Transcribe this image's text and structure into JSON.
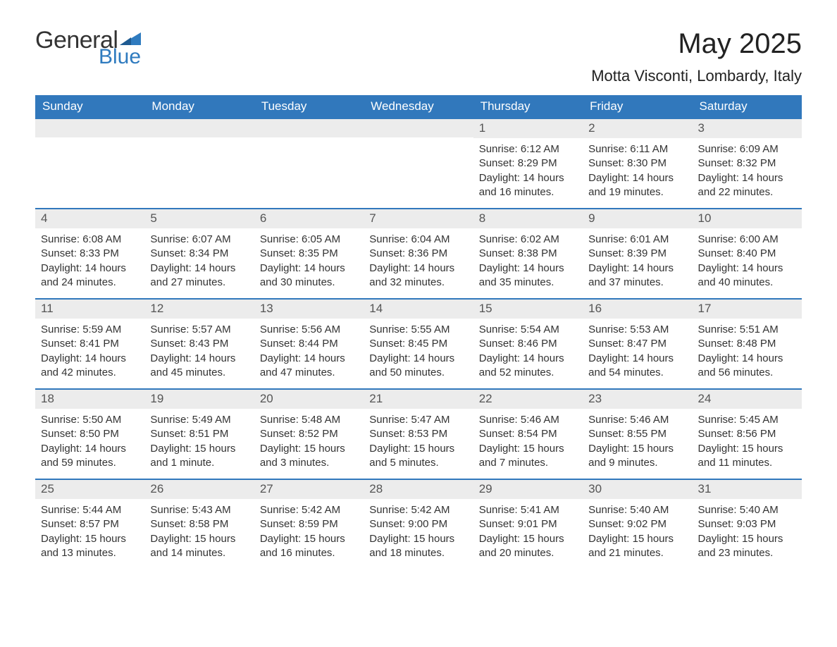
{
  "logo": {
    "line1": "General",
    "line2": "Blue",
    "tri_color": "#2f7bbf"
  },
  "title": "May 2025",
  "subtitle": "Motta Visconti, Lombardy, Italy",
  "colors": {
    "header_bg": "#3178bc",
    "header_text": "#ffffff",
    "daynum_bg": "#ececec",
    "daynum_text": "#555555",
    "body_text": "#333333",
    "rule": "#3178bc"
  },
  "day_headers": [
    "Sunday",
    "Monday",
    "Tuesday",
    "Wednesday",
    "Thursday",
    "Friday",
    "Saturday"
  ],
  "weeks": [
    [
      {
        "n": "",
        "sunrise": "",
        "sunset": "",
        "daylight": ""
      },
      {
        "n": "",
        "sunrise": "",
        "sunset": "",
        "daylight": ""
      },
      {
        "n": "",
        "sunrise": "",
        "sunset": "",
        "daylight": ""
      },
      {
        "n": "",
        "sunrise": "",
        "sunset": "",
        "daylight": ""
      },
      {
        "n": "1",
        "sunrise": "Sunrise: 6:12 AM",
        "sunset": "Sunset: 8:29 PM",
        "daylight": "Daylight: 14 hours and 16 minutes."
      },
      {
        "n": "2",
        "sunrise": "Sunrise: 6:11 AM",
        "sunset": "Sunset: 8:30 PM",
        "daylight": "Daylight: 14 hours and 19 minutes."
      },
      {
        "n": "3",
        "sunrise": "Sunrise: 6:09 AM",
        "sunset": "Sunset: 8:32 PM",
        "daylight": "Daylight: 14 hours and 22 minutes."
      }
    ],
    [
      {
        "n": "4",
        "sunrise": "Sunrise: 6:08 AM",
        "sunset": "Sunset: 8:33 PM",
        "daylight": "Daylight: 14 hours and 24 minutes."
      },
      {
        "n": "5",
        "sunrise": "Sunrise: 6:07 AM",
        "sunset": "Sunset: 8:34 PM",
        "daylight": "Daylight: 14 hours and 27 minutes."
      },
      {
        "n": "6",
        "sunrise": "Sunrise: 6:05 AM",
        "sunset": "Sunset: 8:35 PM",
        "daylight": "Daylight: 14 hours and 30 minutes."
      },
      {
        "n": "7",
        "sunrise": "Sunrise: 6:04 AM",
        "sunset": "Sunset: 8:36 PM",
        "daylight": "Daylight: 14 hours and 32 minutes."
      },
      {
        "n": "8",
        "sunrise": "Sunrise: 6:02 AM",
        "sunset": "Sunset: 8:38 PM",
        "daylight": "Daylight: 14 hours and 35 minutes."
      },
      {
        "n": "9",
        "sunrise": "Sunrise: 6:01 AM",
        "sunset": "Sunset: 8:39 PM",
        "daylight": "Daylight: 14 hours and 37 minutes."
      },
      {
        "n": "10",
        "sunrise": "Sunrise: 6:00 AM",
        "sunset": "Sunset: 8:40 PM",
        "daylight": "Daylight: 14 hours and 40 minutes."
      }
    ],
    [
      {
        "n": "11",
        "sunrise": "Sunrise: 5:59 AM",
        "sunset": "Sunset: 8:41 PM",
        "daylight": "Daylight: 14 hours and 42 minutes."
      },
      {
        "n": "12",
        "sunrise": "Sunrise: 5:57 AM",
        "sunset": "Sunset: 8:43 PM",
        "daylight": "Daylight: 14 hours and 45 minutes."
      },
      {
        "n": "13",
        "sunrise": "Sunrise: 5:56 AM",
        "sunset": "Sunset: 8:44 PM",
        "daylight": "Daylight: 14 hours and 47 minutes."
      },
      {
        "n": "14",
        "sunrise": "Sunrise: 5:55 AM",
        "sunset": "Sunset: 8:45 PM",
        "daylight": "Daylight: 14 hours and 50 minutes."
      },
      {
        "n": "15",
        "sunrise": "Sunrise: 5:54 AM",
        "sunset": "Sunset: 8:46 PM",
        "daylight": "Daylight: 14 hours and 52 minutes."
      },
      {
        "n": "16",
        "sunrise": "Sunrise: 5:53 AM",
        "sunset": "Sunset: 8:47 PM",
        "daylight": "Daylight: 14 hours and 54 minutes."
      },
      {
        "n": "17",
        "sunrise": "Sunrise: 5:51 AM",
        "sunset": "Sunset: 8:48 PM",
        "daylight": "Daylight: 14 hours and 56 minutes."
      }
    ],
    [
      {
        "n": "18",
        "sunrise": "Sunrise: 5:50 AM",
        "sunset": "Sunset: 8:50 PM",
        "daylight": "Daylight: 14 hours and 59 minutes."
      },
      {
        "n": "19",
        "sunrise": "Sunrise: 5:49 AM",
        "sunset": "Sunset: 8:51 PM",
        "daylight": "Daylight: 15 hours and 1 minute."
      },
      {
        "n": "20",
        "sunrise": "Sunrise: 5:48 AM",
        "sunset": "Sunset: 8:52 PM",
        "daylight": "Daylight: 15 hours and 3 minutes."
      },
      {
        "n": "21",
        "sunrise": "Sunrise: 5:47 AM",
        "sunset": "Sunset: 8:53 PM",
        "daylight": "Daylight: 15 hours and 5 minutes."
      },
      {
        "n": "22",
        "sunrise": "Sunrise: 5:46 AM",
        "sunset": "Sunset: 8:54 PM",
        "daylight": "Daylight: 15 hours and 7 minutes."
      },
      {
        "n": "23",
        "sunrise": "Sunrise: 5:46 AM",
        "sunset": "Sunset: 8:55 PM",
        "daylight": "Daylight: 15 hours and 9 minutes."
      },
      {
        "n": "24",
        "sunrise": "Sunrise: 5:45 AM",
        "sunset": "Sunset: 8:56 PM",
        "daylight": "Daylight: 15 hours and 11 minutes."
      }
    ],
    [
      {
        "n": "25",
        "sunrise": "Sunrise: 5:44 AM",
        "sunset": "Sunset: 8:57 PM",
        "daylight": "Daylight: 15 hours and 13 minutes."
      },
      {
        "n": "26",
        "sunrise": "Sunrise: 5:43 AM",
        "sunset": "Sunset: 8:58 PM",
        "daylight": "Daylight: 15 hours and 14 minutes."
      },
      {
        "n": "27",
        "sunrise": "Sunrise: 5:42 AM",
        "sunset": "Sunset: 8:59 PM",
        "daylight": "Daylight: 15 hours and 16 minutes."
      },
      {
        "n": "28",
        "sunrise": "Sunrise: 5:42 AM",
        "sunset": "Sunset: 9:00 PM",
        "daylight": "Daylight: 15 hours and 18 minutes."
      },
      {
        "n": "29",
        "sunrise": "Sunrise: 5:41 AM",
        "sunset": "Sunset: 9:01 PM",
        "daylight": "Daylight: 15 hours and 20 minutes."
      },
      {
        "n": "30",
        "sunrise": "Sunrise: 5:40 AM",
        "sunset": "Sunset: 9:02 PM",
        "daylight": "Daylight: 15 hours and 21 minutes."
      },
      {
        "n": "31",
        "sunrise": "Sunrise: 5:40 AM",
        "sunset": "Sunset: 9:03 PM",
        "daylight": "Daylight: 15 hours and 23 minutes."
      }
    ]
  ]
}
